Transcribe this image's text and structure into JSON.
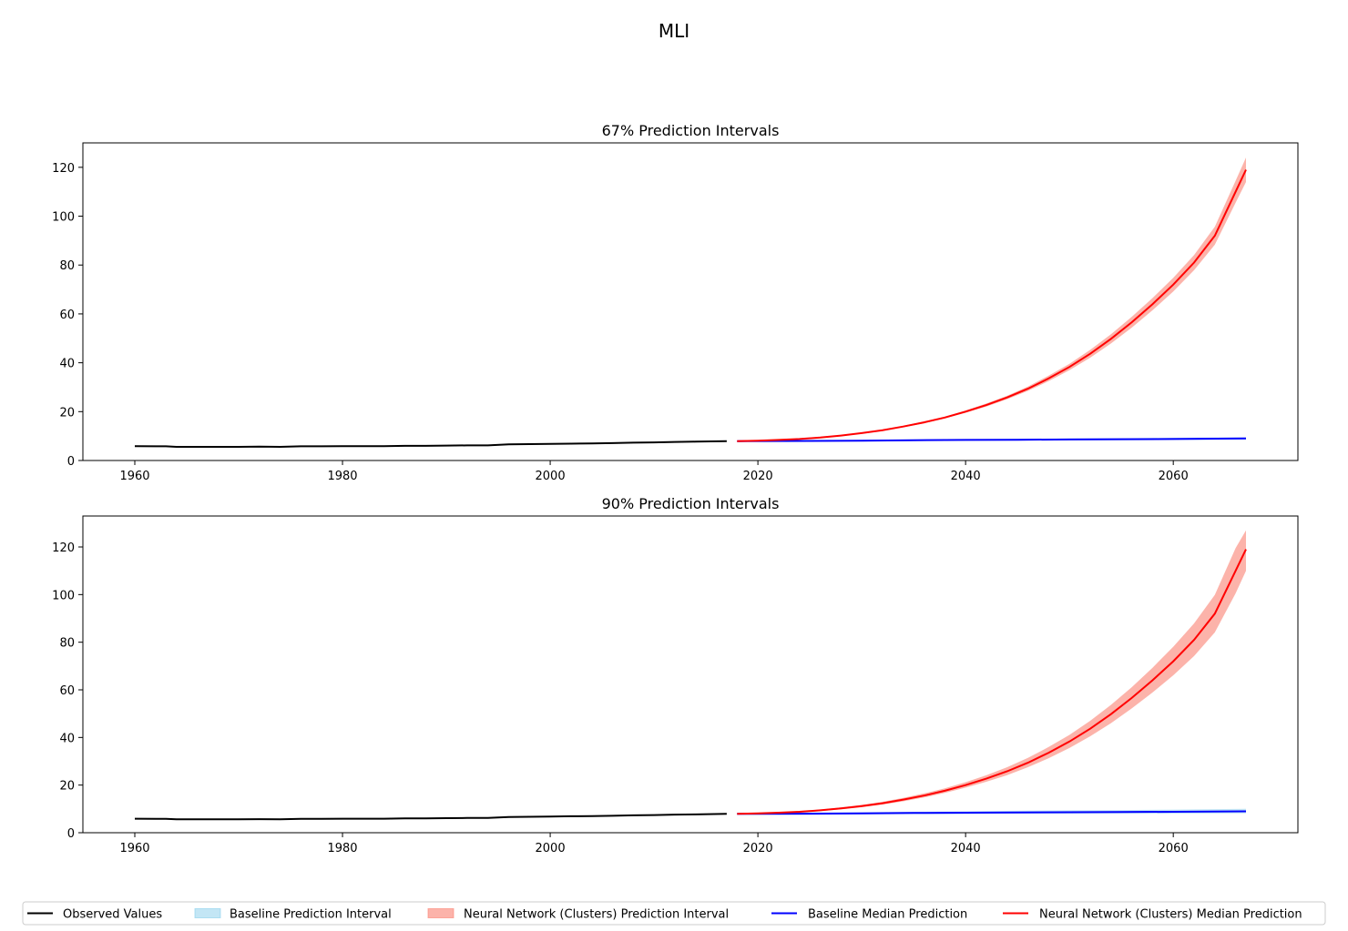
{
  "figure": {
    "title": "MLI",
    "legend": {
      "placement": "bottom-center",
      "entries": [
        {
          "key": "observed",
          "label": "Observed Values",
          "kind": "line",
          "color": "#000000"
        },
        {
          "key": "baseline_pi",
          "label": "Baseline Prediction Interval",
          "kind": "band",
          "color": "#87CEEB"
        },
        {
          "key": "nn_pi",
          "label": "Neural Network (Clusters) Prediction Interval",
          "kind": "band",
          "color": "#FA8072"
        },
        {
          "key": "baseline_median",
          "label": "Baseline Median Prediction",
          "kind": "line",
          "color": "#0000FF"
        },
        {
          "key": "nn_median",
          "label": "Neural Network (Clusters) Median Prediction",
          "kind": "line",
          "color": "#FF0000"
        }
      ]
    }
  },
  "chart_data": [
    {
      "type": "line",
      "title": "67% Prediction Intervals",
      "xlabel": "",
      "ylabel": "",
      "xlim": [
        1955,
        2072
      ],
      "ylim": [
        0,
        130
      ],
      "xticks": [
        1960,
        1980,
        2000,
        2020,
        2040,
        2060
      ],
      "yticks": [
        0,
        20,
        40,
        60,
        80,
        100,
        120
      ],
      "grid": false,
      "observed": {
        "x": [
          1960,
          1962,
          1963,
          1964,
          1966,
          1968,
          1970,
          1972,
          1974,
          1976,
          1978,
          1980,
          1982,
          1984,
          1986,
          1988,
          1990,
          1992,
          1994,
          1996,
          1998,
          2000,
          2002,
          2004,
          2006,
          2008,
          2010,
          2012,
          2014,
          2017
        ],
        "y": [
          5.9,
          5.8,
          5.8,
          5.6,
          5.6,
          5.6,
          5.6,
          5.7,
          5.6,
          5.8,
          5.8,
          5.9,
          5.9,
          5.9,
          6.0,
          6.0,
          6.1,
          6.2,
          6.2,
          6.6,
          6.7,
          6.8,
          6.9,
          7.0,
          7.1,
          7.3,
          7.4,
          7.6,
          7.7,
          7.9
        ]
      },
      "baseline": {
        "x": [
          2018,
          2025,
          2030,
          2035,
          2040,
          2045,
          2050,
          2055,
          2060,
          2067
        ],
        "median": [
          7.9,
          8.0,
          8.1,
          8.3,
          8.4,
          8.5,
          8.6,
          8.7,
          8.8,
          9.0
        ],
        "lower": [
          7.7,
          7.8,
          7.9,
          8.0,
          8.1,
          8.2,
          8.3,
          8.3,
          8.4,
          8.5
        ],
        "upper": [
          8.1,
          8.2,
          8.4,
          8.6,
          8.7,
          8.9,
          9.0,
          9.1,
          9.3,
          9.5
        ]
      },
      "nn": {
        "x": [
          2018,
          2020,
          2022,
          2024,
          2026,
          2028,
          2030,
          2032,
          2034,
          2036,
          2038,
          2040,
          2042,
          2044,
          2046,
          2048,
          2050,
          2052,
          2054,
          2056,
          2058,
          2060,
          2062,
          2064,
          2066,
          2067
        ],
        "median": [
          7.9,
          8.1,
          8.4,
          8.8,
          9.4,
          10.2,
          11.2,
          12.4,
          13.9,
          15.6,
          17.6,
          20.0,
          22.7,
          25.8,
          29.4,
          33.6,
          38.3,
          43.7,
          49.8,
          56.6,
          64.0,
          72.0,
          81.0,
          92.0,
          110.0,
          119.0
        ],
        "lower": [
          7.8,
          8.0,
          8.3,
          8.7,
          9.3,
          10.0,
          11.0,
          12.2,
          13.6,
          15.2,
          17.2,
          19.5,
          22.1,
          25.1,
          28.5,
          32.5,
          37.0,
          42.1,
          47.9,
          54.4,
          61.5,
          69.2,
          77.9,
          88.3,
          105.5,
          114.0
        ],
        "upper": [
          8.0,
          8.2,
          8.5,
          8.9,
          9.5,
          10.4,
          11.4,
          12.6,
          14.2,
          16.0,
          18.0,
          20.5,
          23.3,
          26.5,
          30.3,
          34.7,
          39.6,
          45.3,
          51.7,
          58.8,
          66.5,
          74.8,
          84.1,
          95.7,
          114.5,
          124.0
        ]
      }
    },
    {
      "type": "line",
      "title": "90% Prediction Intervals",
      "xlabel": "",
      "ylabel": "",
      "xlim": [
        1955,
        2072
      ],
      "ylim": [
        0,
        133
      ],
      "xticks": [
        1960,
        1980,
        2000,
        2020,
        2040,
        2060
      ],
      "yticks": [
        0,
        20,
        40,
        60,
        80,
        100,
        120
      ],
      "grid": false,
      "observed": {
        "x": [
          1960,
          1962,
          1963,
          1964,
          1966,
          1968,
          1970,
          1972,
          1974,
          1976,
          1978,
          1980,
          1982,
          1984,
          1986,
          1988,
          1990,
          1992,
          1994,
          1996,
          1998,
          2000,
          2002,
          2004,
          2006,
          2008,
          2010,
          2012,
          2014,
          2017
        ],
        "y": [
          5.9,
          5.8,
          5.8,
          5.6,
          5.6,
          5.6,
          5.6,
          5.7,
          5.6,
          5.8,
          5.8,
          5.9,
          5.9,
          5.9,
          6.0,
          6.0,
          6.1,
          6.2,
          6.2,
          6.6,
          6.7,
          6.8,
          6.9,
          7.0,
          7.1,
          7.3,
          7.4,
          7.6,
          7.7,
          7.9
        ]
      },
      "baseline": {
        "x": [
          2018,
          2025,
          2030,
          2035,
          2040,
          2045,
          2050,
          2055,
          2060,
          2067
        ],
        "median": [
          7.9,
          8.0,
          8.1,
          8.3,
          8.4,
          8.5,
          8.6,
          8.7,
          8.8,
          9.0
        ],
        "lower": [
          7.5,
          7.6,
          7.7,
          7.8,
          7.8,
          7.9,
          7.9,
          8.0,
          8.0,
          8.1
        ],
        "upper": [
          8.3,
          8.5,
          8.6,
          8.8,
          9.0,
          9.2,
          9.4,
          9.5,
          9.7,
          10.0
        ]
      },
      "nn": {
        "x": [
          2018,
          2020,
          2022,
          2024,
          2026,
          2028,
          2030,
          2032,
          2034,
          2036,
          2038,
          2040,
          2042,
          2044,
          2046,
          2048,
          2050,
          2052,
          2054,
          2056,
          2058,
          2060,
          2062,
          2064,
          2066,
          2067
        ],
        "median": [
          7.9,
          8.1,
          8.4,
          8.8,
          9.4,
          10.2,
          11.2,
          12.4,
          13.9,
          15.6,
          17.6,
          20.0,
          22.7,
          25.8,
          29.4,
          33.6,
          38.3,
          43.7,
          49.8,
          56.6,
          64.0,
          72.0,
          81.0,
          92.0,
          110.0,
          119.0
        ],
        "lower": [
          7.7,
          7.9,
          8.1,
          8.5,
          9.1,
          9.8,
          10.7,
          11.8,
          13.2,
          14.8,
          16.7,
          18.9,
          21.4,
          24.2,
          27.5,
          31.3,
          35.6,
          40.5,
          46.0,
          52.2,
          58.9,
          66.1,
          74.2,
          84.1,
          100.5,
          110.0
        ],
        "upper": [
          8.1,
          8.3,
          8.7,
          9.1,
          9.7,
          10.6,
          11.7,
          13.0,
          14.6,
          16.5,
          18.6,
          21.2,
          24.1,
          27.5,
          31.4,
          36.0,
          41.1,
          47.0,
          53.7,
          61.1,
          69.3,
          78.1,
          87.9,
          99.9,
          119.5,
          127.0
        ]
      }
    }
  ]
}
